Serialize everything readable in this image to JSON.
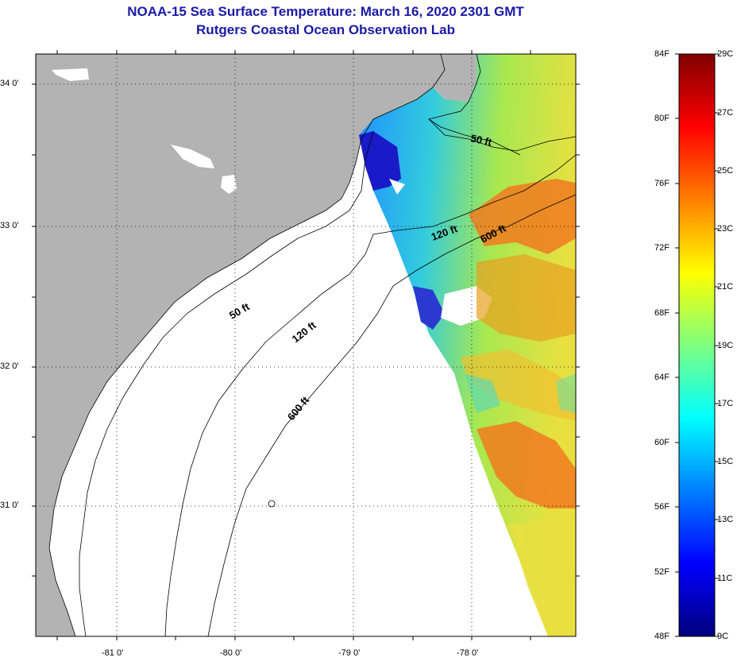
{
  "header": {
    "title": "NOAA-15 Sea Surface Temperature:  March 16, 2020 2301 GMT",
    "subtitle": "Rutgers Coastal Ocean Observation Lab"
  },
  "map": {
    "land_color": "#b3b3b3",
    "no_data_color": "#ffffff",
    "lat_ticks": [
      "34 0'",
      "33 0'",
      "32 0'",
      "31 0'"
    ],
    "lon_ticks": [
      "-81 0'",
      "-80 0'",
      "-79 0'",
      "-78 0'"
    ],
    "contours": [
      {
        "label": "50 ft"
      },
      {
        "label": "120 ft"
      },
      {
        "label": "600 ft"
      },
      {
        "label": "50 ft"
      },
      {
        "label": "120 ft"
      },
      {
        "label": "600 ft"
      }
    ]
  },
  "colorbar": {
    "fahrenheit": [
      "84F",
      "80F",
      "76F",
      "72F",
      "68F",
      "64F",
      "60F",
      "56F",
      "52F",
      "48F"
    ],
    "celsius": [
      "29C",
      "27C",
      "25C",
      "23C",
      "21C",
      "19C",
      "17C",
      "15C",
      "13C",
      "11C",
      "9C"
    ],
    "colors": [
      "#00007f",
      "#0000ff",
      "#007fff",
      "#00ffff",
      "#7fff7f",
      "#ffff00",
      "#ff7f00",
      "#ff0000",
      "#7f0000"
    ]
  }
}
